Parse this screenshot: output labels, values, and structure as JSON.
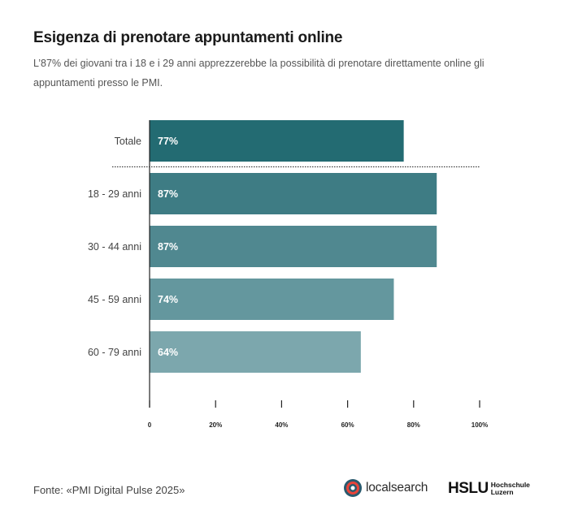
{
  "title": "Esigenza di prenotare appuntamenti online",
  "subtitle": "L’87% dei giovani tra i 18 e i 29 anni apprezzerebbe la possibilità di prenotare direttamente online gli appuntamenti presso le PMI.",
  "source": "Fonte: «PMI Digital Pulse 2025»",
  "logos": {
    "localsearch": "localsearch",
    "hslu_main": "HSLU",
    "hslu_sub_1": "Hochschule",
    "hslu_sub_2": "Luzern"
  },
  "chart_data": {
    "type": "bar",
    "orientation": "horizontal",
    "categories": [
      "Totale",
      "18 - 29 anni",
      "30 - 44 anni",
      "45 - 59 anni",
      "60 - 79 anni"
    ],
    "values": [
      77,
      87,
      87,
      74,
      64
    ],
    "value_labels": [
      "77%",
      "87%",
      "87%",
      "74%",
      "64%"
    ],
    "xlim": [
      0,
      100
    ],
    "x_ticks": [
      0,
      20,
      40,
      60,
      80,
      100
    ],
    "x_tick_labels": [
      "0",
      "20%",
      "40%",
      "60%",
      "80%",
      "100%"
    ],
    "colors": [
      "#236b72",
      "#3e7c84",
      "#508890",
      "#64979e",
      "#7ca7ad"
    ],
    "separator_after_index": 0,
    "grid": false
  }
}
